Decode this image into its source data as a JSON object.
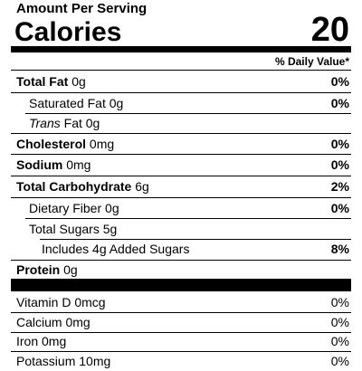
{
  "header": {
    "serving_label": "Amount Per Serving",
    "calories_label": "Calories",
    "calories_value": "20"
  },
  "daily_value_header": "% Daily Value*",
  "nutrients": [
    {
      "label": "Total Fat",
      "amount": "0g",
      "dv": "0%"
    },
    {
      "label": "Saturated Fat",
      "amount": "0g",
      "dv": "0%"
    },
    {
      "label": "Trans",
      "amount": "Fat 0g"
    },
    {
      "label": "Cholesterol",
      "amount": "0mg",
      "dv": "0%"
    },
    {
      "label": "Sodium",
      "amount": "0mg",
      "dv": "0%"
    },
    {
      "label": "Total Carbohydrate",
      "amount": "6g",
      "dv": "2%"
    },
    {
      "label": "Dietary Fiber",
      "amount": "0g",
      "dv": "0%"
    },
    {
      "label": "Total Sugars",
      "amount": "5g"
    },
    {
      "label": "Includes 4g Added Sugars",
      "dv": "8%"
    },
    {
      "label": "Protein",
      "amount": "0g"
    }
  ],
  "vitamins": [
    {
      "label": "Vitamin D 0mcg",
      "dv": "0%"
    },
    {
      "label": "Calcium 0mg",
      "dv": "0%"
    },
    {
      "label": "Iron 0mg",
      "dv": "0%"
    },
    {
      "label": "Potassium 10mg",
      "dv": "0%"
    }
  ]
}
